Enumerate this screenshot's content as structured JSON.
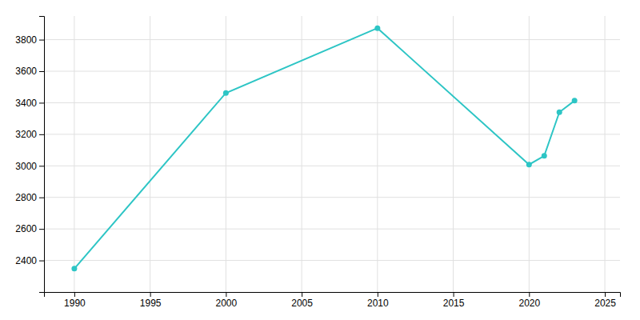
{
  "chart_data": {
    "type": "line",
    "x": [
      1990,
      2000,
      2010,
      2020,
      2021,
      2022,
      2023
    ],
    "values": [
      2348,
      3462,
      3873,
      3008,
      3063,
      3340,
      3413
    ],
    "color": "#2dc5c5",
    "marker": "circle",
    "xlim": [
      1988,
      2026
    ],
    "ylim": [
      2200,
      3950
    ],
    "xticks": [
      1990,
      1995,
      2000,
      2005,
      2010,
      2015,
      2020,
      2025
    ],
    "yticks": [
      2400,
      2600,
      2800,
      3000,
      3200,
      3400,
      3600,
      3800
    ],
    "grid": true
  }
}
